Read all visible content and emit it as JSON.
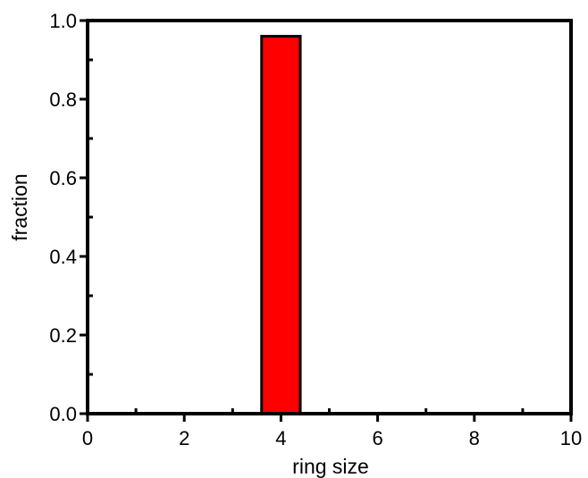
{
  "chart_data": {
    "type": "bar",
    "title": "",
    "xlabel": "ring size",
    "ylabel": "fraction",
    "x": [
      4
    ],
    "values": [
      0.96
    ],
    "bar_width": 0.8,
    "xlim": [
      0,
      10
    ],
    "ylim": [
      0.0,
      1.0
    ],
    "xticks": [
      0,
      2,
      4,
      6,
      8,
      10
    ],
    "xtick_labels": [
      "0",
      "2",
      "4",
      "6",
      "8",
      "10"
    ],
    "yticks": [
      0.0,
      0.2,
      0.4,
      0.6,
      0.8,
      1.0
    ],
    "ytick_labels": [
      "0.0",
      "0.2",
      "0.4",
      "0.6",
      "0.8",
      "1.0"
    ],
    "grid": false,
    "legend": "none",
    "colors": {
      "bar": "#ff0000",
      "outline": "#000000"
    }
  }
}
